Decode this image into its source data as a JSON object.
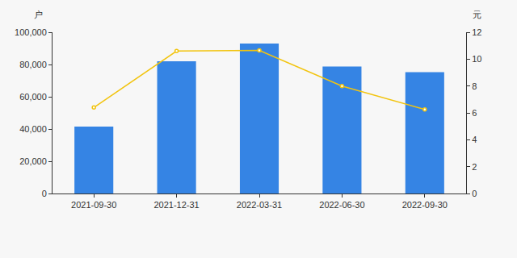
{
  "chart_data": {
    "type": "bar",
    "categories": [
      "2021-09-30",
      "2021-12-31",
      "2022-03-31",
      "2022-06-30",
      "2022-09-30"
    ],
    "ylabel": "户",
    "y2label": "元",
    "series": [
      {
        "type": "bar",
        "color": "#3584e4",
        "values": [
          41500,
          82000,
          93000,
          78800,
          75200
        ]
      },
      {
        "type": "line",
        "axis": "y2",
        "color": "#f2c40f",
        "marker": "circle",
        "values": [
          6.4,
          10.6,
          10.65,
          8.0,
          6.25
        ]
      }
    ],
    "ylim": [
      0,
      100000
    ],
    "yticks": [
      0,
      {
        "value": 20000,
        "label": "20,000"
      },
      {
        "value": 40000,
        "label": "40,000"
      },
      {
        "value": 60000,
        "label": "60,000"
      },
      {
        "value": 80000,
        "label": "80,000"
      },
      {
        "value": 100000,
        "label": "100,000"
      }
    ],
    "y2lim": [
      0,
      12
    ],
    "y2ticks": [
      0,
      2,
      4,
      6,
      8,
      10,
      12
    ],
    "grid": false
  }
}
